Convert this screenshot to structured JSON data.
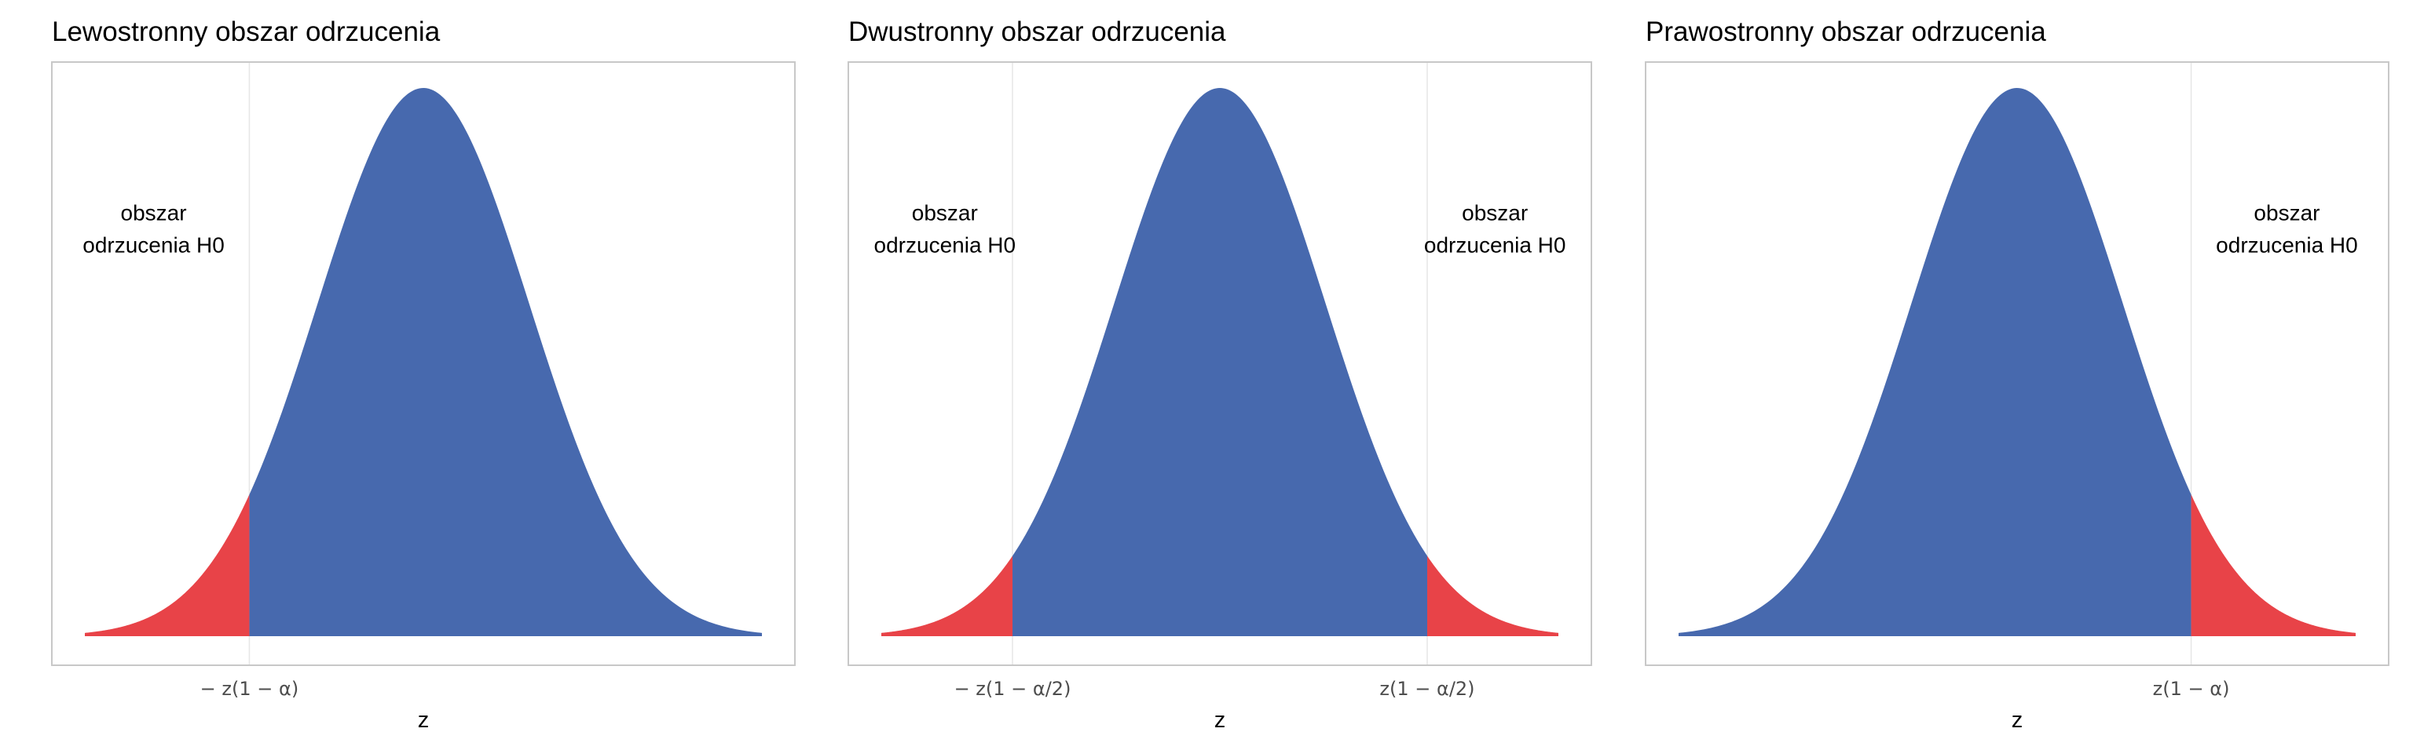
{
  "chart_data": [
    {
      "type": "area",
      "title": "Lewostronny obszar odrzucenia",
      "xlabel": "z",
      "ylabel": "",
      "distribution": "standard normal",
      "xlim": [
        -3.2,
        3.2
      ],
      "ylim": [
        0,
        0.42
      ],
      "grid": true,
      "legend": "none",
      "critical_values": [
        -1.645
      ],
      "rejection_regions": [
        [
          -3.2,
          -1.645
        ]
      ],
      "ticks": [
        {
          "x": -1.645,
          "label": "− z(1 − α)"
        }
      ],
      "annotations": [
        {
          "x": -2.55,
          "y": 0.29,
          "lines": [
            "obszar",
            "odrzucenia H0"
          ]
        }
      ],
      "colors": {
        "acceptance": "#4769ae",
        "rejection": "#e84348"
      }
    },
    {
      "type": "area",
      "title": "Dwustronny obszar odrzucenia",
      "xlabel": "z",
      "ylabel": "",
      "distribution": "standard normal",
      "xlim": [
        -3.2,
        3.2
      ],
      "ylim": [
        0,
        0.42
      ],
      "grid": true,
      "legend": "none",
      "critical_values": [
        -1.96,
        1.96
      ],
      "rejection_regions": [
        [
          -3.2,
          -1.96
        ],
        [
          1.96,
          3.2
        ]
      ],
      "ticks": [
        {
          "x": -1.96,
          "label": "− z(1 − α/2)"
        },
        {
          "x": 1.96,
          "label": "z(1 − α/2)"
        }
      ],
      "annotations": [
        {
          "x": -2.6,
          "y": 0.29,
          "lines": [
            "obszar",
            "odrzucenia H0"
          ]
        },
        {
          "x": 2.6,
          "y": 0.29,
          "lines": [
            "obszar",
            "odrzucenia H0"
          ]
        }
      ],
      "colors": {
        "acceptance": "#4769ae",
        "rejection": "#e84348"
      }
    },
    {
      "type": "area",
      "title": "Prawostronny obszar odrzucenia",
      "xlabel": "z",
      "ylabel": "",
      "distribution": "standard normal",
      "xlim": [
        -3.2,
        3.2
      ],
      "ylim": [
        0,
        0.42
      ],
      "grid": true,
      "legend": "none",
      "critical_values": [
        1.645
      ],
      "rejection_regions": [
        [
          1.645,
          3.2
        ]
      ],
      "ticks": [
        {
          "x": 1.645,
          "label": "z(1 − α)"
        }
      ],
      "annotations": [
        {
          "x": 2.55,
          "y": 0.29,
          "lines": [
            "obszar",
            "odrzucenia H0"
          ]
        }
      ],
      "colors": {
        "acceptance": "#4769ae",
        "rejection": "#e84348"
      }
    }
  ]
}
